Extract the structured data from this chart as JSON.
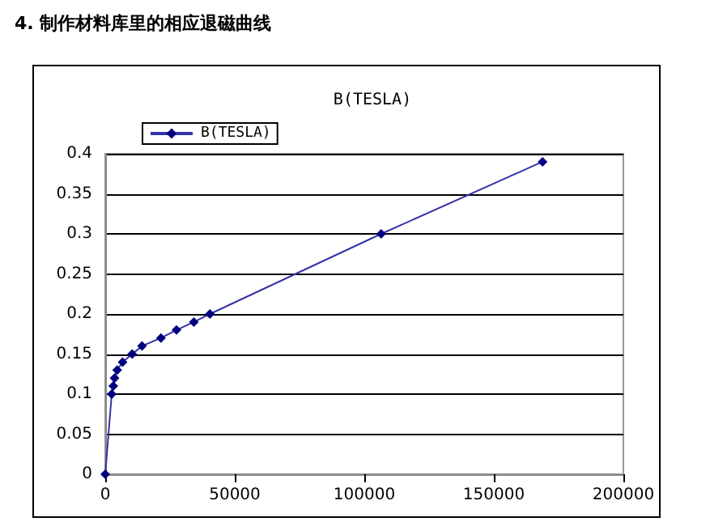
{
  "chart_data": {
    "type": "line",
    "title": "B(TESLA)",
    "annotations": [
      "4. 制作材料库里的相应退磁曲线"
    ],
    "series": [
      {
        "name": "B(TESLA)",
        "color": "#3333aa",
        "x": [
          0,
          2500,
          3100,
          3600,
          4600,
          6700,
          10400,
          14200,
          21500,
          27500,
          34200,
          40400,
          106500,
          168800
        ],
        "values": [
          0,
          0.1,
          0.11,
          0.12,
          0.13,
          0.14,
          0.15,
          0.16,
          0.17,
          0.18,
          0.19,
          0.2,
          0.3,
          0.39
        ]
      }
    ],
    "xlim": [
      0,
      200000
    ],
    "xticks": [
      0,
      50000,
      100000,
      150000,
      200000
    ],
    "ylim": [
      0,
      0.4
    ],
    "yticks": [
      0,
      0.05,
      0.1,
      0.15,
      0.2,
      0.25,
      0.3,
      0.35,
      0.4
    ],
    "grid": "y",
    "legend": "top left",
    "marker": "diamond",
    "line_style": "solid"
  }
}
